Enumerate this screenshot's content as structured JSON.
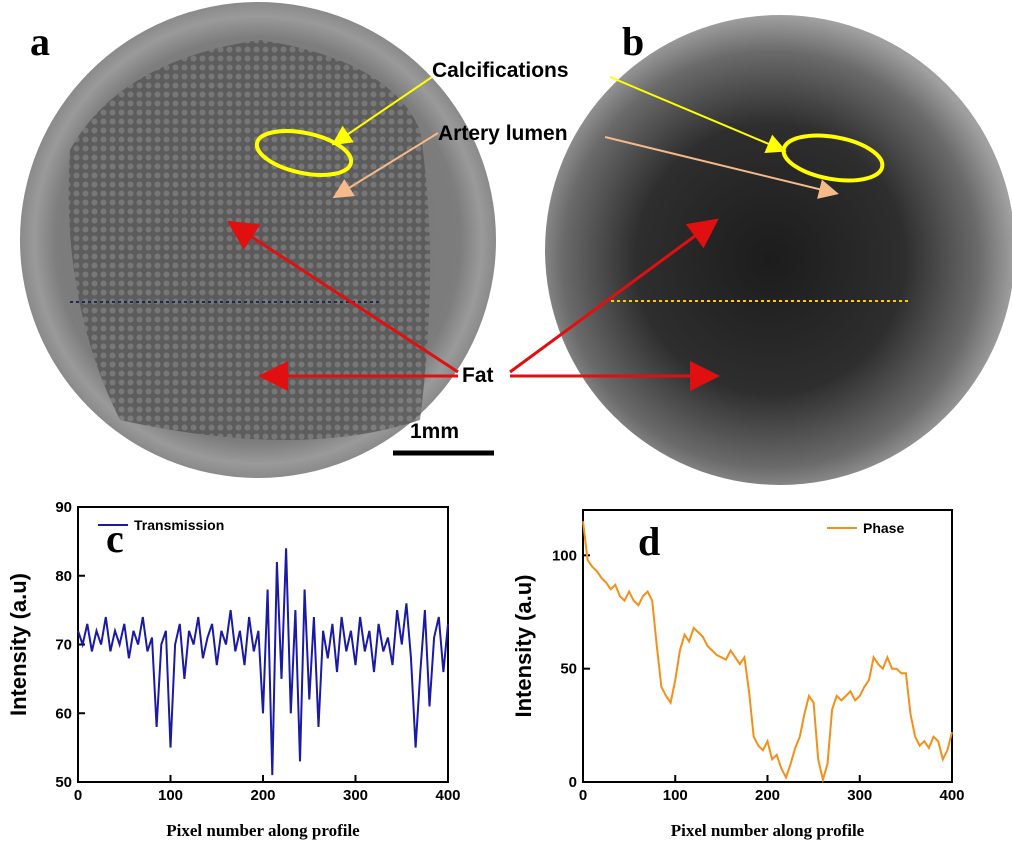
{
  "image_annotations": {
    "panel_a": "a",
    "panel_b": "b",
    "calcifications": "Calcifications",
    "artery_lumen": "Artery lumen",
    "fat": "Fat",
    "scale_bar": "1mm"
  },
  "chart_data": [
    {
      "type": "line",
      "panel_label": "c",
      "x_label": "Pixel number along profile",
      "y_label": "Intensity (a.u)",
      "x": [
        0,
        5,
        10,
        15,
        20,
        25,
        30,
        35,
        40,
        45,
        50,
        55,
        60,
        65,
        70,
        75,
        80,
        85,
        90,
        95,
        100,
        105,
        110,
        115,
        120,
        125,
        130,
        135,
        140,
        145,
        150,
        155,
        160,
        165,
        170,
        175,
        180,
        185,
        190,
        195,
        200,
        205,
        210,
        215,
        220,
        225,
        230,
        235,
        240,
        245,
        250,
        255,
        260,
        265,
        270,
        275,
        280,
        285,
        290,
        295,
        300,
        305,
        310,
        315,
        320,
        325,
        330,
        335,
        340,
        345,
        350,
        355,
        360,
        365,
        370,
        375,
        380,
        385,
        390,
        395,
        400
      ],
      "series": [
        {
          "name": "Transmission",
          "color": "#1a1aa6",
          "values": [
            72,
            70,
            73,
            69,
            72,
            70,
            74,
            69,
            72,
            70,
            73,
            68,
            72,
            70,
            74,
            69,
            71,
            58,
            70,
            72,
            55,
            70,
            73,
            65,
            72,
            70,
            74,
            68,
            71,
            73,
            67,
            72,
            70,
            75,
            69,
            72,
            67,
            74,
            69,
            72,
            60,
            78,
            51,
            82,
            65,
            84,
            60,
            75,
            53,
            78,
            62,
            74,
            58,
            72,
            68,
            73,
            66,
            74,
            69,
            72,
            67,
            74,
            69,
            72,
            66,
            73,
            69,
            71,
            67,
            75,
            70,
            76,
            68,
            55,
            66,
            75,
            61,
            71,
            74,
            66,
            73
          ]
        }
      ],
      "xlim": [
        0,
        400
      ],
      "xticks": [
        0,
        100,
        200,
        300,
        400
      ],
      "ylim": [
        50,
        90
      ],
      "yticks": [
        50,
        60,
        70,
        80,
        90
      ],
      "legend": "upper left"
    },
    {
      "type": "line",
      "panel_label": "d",
      "x_label": "Pixel number along profile",
      "y_label": "Intensity (a.u)",
      "x": [
        0,
        5,
        10,
        15,
        20,
        25,
        30,
        35,
        40,
        45,
        50,
        55,
        60,
        65,
        70,
        75,
        80,
        85,
        90,
        95,
        100,
        105,
        110,
        115,
        120,
        125,
        130,
        135,
        140,
        145,
        150,
        155,
        160,
        165,
        170,
        175,
        180,
        185,
        190,
        195,
        200,
        205,
        210,
        215,
        220,
        225,
        230,
        235,
        240,
        245,
        250,
        255,
        260,
        265,
        270,
        275,
        280,
        285,
        290,
        295,
        300,
        305,
        310,
        315,
        320,
        325,
        330,
        335,
        340,
        345,
        350,
        355,
        360,
        365,
        370,
        375,
        380,
        385,
        390,
        395,
        400
      ],
      "series": [
        {
          "name": "Phase",
          "color": "#f39019",
          "values": [
            115,
            98,
            95,
            93,
            90,
            88,
            85,
            87,
            82,
            80,
            84,
            80,
            78,
            82,
            84,
            80,
            60,
            42,
            38,
            35,
            45,
            58,
            65,
            62,
            68,
            66,
            64,
            60,
            58,
            56,
            55,
            54,
            58,
            55,
            52,
            55,
            40,
            20,
            16,
            14,
            18,
            10,
            12,
            6,
            2,
            8,
            15,
            20,
            30,
            38,
            35,
            10,
            1,
            8,
            32,
            38,
            36,
            38,
            40,
            36,
            38,
            42,
            45,
            55,
            52,
            50,
            55,
            50,
            50,
            48,
            48,
            30,
            20,
            16,
            18,
            15,
            20,
            18,
            10,
            14,
            22
          ]
        }
      ],
      "xlim": [
        0,
        400
      ],
      "xticks": [
        0,
        100,
        200,
        300,
        400
      ],
      "ylim": [
        0,
        120
      ],
      "yticks": [
        0,
        50,
        100
      ],
      "legend": "upper right"
    }
  ]
}
